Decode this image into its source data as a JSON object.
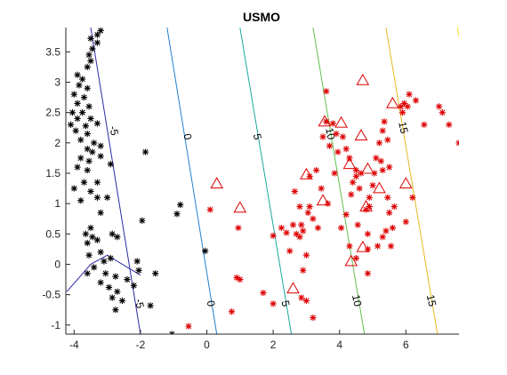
{
  "chart_data": {
    "type": "scatter",
    "title": "USMO",
    "xlabel": "",
    "ylabel": "",
    "xlim": [
      -4.25,
      7.6
    ],
    "ylim": [
      -1.15,
      3.9
    ],
    "xticks": [
      -4,
      -2,
      0,
      2,
      4,
      6
    ],
    "yticks": [
      -1,
      -0.5,
      0,
      0.5,
      1,
      1.5,
      2,
      2.5,
      3,
      3.5
    ],
    "grid": false,
    "contour_lines": [
      {
        "level": -5,
        "label": "-5",
        "color": "#2a2aa6",
        "points": [
          [
            -4.22,
            -0.45
          ],
          [
            -3.5,
            0.0
          ],
          [
            -3.0,
            0.15
          ],
          [
            -2.0,
            -0.18
          ]
        ]
      },
      {
        "level": -5,
        "label": "-5",
        "color": "#2a2aa6",
        "points": [
          [
            -3.5,
            3.9
          ],
          [
            -2.0,
            -1.15
          ]
        ]
      },
      {
        "level": 0,
        "label": "0",
        "color": "#1f7fd0",
        "points": [
          [
            -1.2,
            3.9
          ],
          [
            0.3,
            -1.15
          ]
        ]
      },
      {
        "level": 5,
        "label": "5",
        "color": "#19a8a0",
        "points": [
          [
            1.0,
            3.9
          ],
          [
            2.55,
            -1.15
          ]
        ]
      },
      {
        "level": 10,
        "label": "10",
        "color": "#62c050",
        "points": [
          [
            3.2,
            3.9
          ],
          [
            4.75,
            -1.15
          ]
        ]
      },
      {
        "level": 15,
        "label": "15",
        "color": "#e8b820",
        "points": [
          [
            5.4,
            3.9
          ],
          [
            6.95,
            -1.15
          ]
        ]
      },
      {
        "level": 20,
        "label": "",
        "color": "#f2e01a",
        "points": [
          [
            7.55,
            3.9
          ],
          [
            7.6,
            3.75
          ]
        ]
      }
    ],
    "contour_labels": [
      {
        "text": "-5",
        "x": -2.82,
        "y": 2.2
      },
      {
        "text": "-5",
        "x": -2.05,
        "y": -0.65
      },
      {
        "text": "0",
        "x": -0.6,
        "y": 2.1
      },
      {
        "text": "0",
        "x": 0.1,
        "y": -0.65
      },
      {
        "text": "5",
        "x": 1.5,
        "y": 2.1
      },
      {
        "text": "5",
        "x": 2.35,
        "y": -0.65
      },
      {
        "text": "10",
        "x": 3.7,
        "y": 2.15
      },
      {
        "text": "10",
        "x": 4.5,
        "y": -0.6
      },
      {
        "text": "15",
        "x": 5.9,
        "y": 2.25
      },
      {
        "text": "15",
        "x": 6.75,
        "y": -0.6
      }
    ],
    "series": [
      {
        "marker": "star",
        "color": "#000000",
        "points": [
          [
            -3.2,
            3.85
          ],
          [
            -3.3,
            3.78
          ],
          [
            -3.5,
            3.72
          ],
          [
            -3.3,
            3.65
          ],
          [
            -3.45,
            3.55
          ],
          [
            -3.55,
            3.45
          ],
          [
            -3.5,
            3.35
          ],
          [
            -3.6,
            3.25
          ],
          [
            -3.9,
            3.12
          ],
          [
            -3.75,
            3.05
          ],
          [
            -3.85,
            2.95
          ],
          [
            -3.6,
            2.9
          ],
          [
            -4.0,
            2.8
          ],
          [
            -3.7,
            2.75
          ],
          [
            -3.9,
            2.65
          ],
          [
            -3.55,
            2.6
          ],
          [
            -4.05,
            2.5
          ],
          [
            -3.75,
            2.5
          ],
          [
            -3.9,
            2.4
          ],
          [
            -3.5,
            2.4
          ],
          [
            -4.1,
            2.3
          ],
          [
            -3.65,
            2.28
          ],
          [
            -3.3,
            2.32
          ],
          [
            -3.95,
            2.2
          ],
          [
            -3.6,
            2.15
          ],
          [
            -3.8,
            2.05
          ],
          [
            -3.4,
            2.0
          ],
          [
            -3.2,
            1.95
          ],
          [
            -3.6,
            1.9
          ],
          [
            -3.45,
            1.85
          ],
          [
            -3.8,
            1.75
          ],
          [
            -3.55,
            1.7
          ],
          [
            -3.2,
            1.78
          ],
          [
            -3.9,
            1.6
          ],
          [
            -3.6,
            1.55
          ],
          [
            -2.9,
            1.65
          ],
          [
            -3.7,
            1.35
          ],
          [
            -4.0,
            1.25
          ],
          [
            -3.3,
            1.35
          ],
          [
            -3.5,
            1.2
          ],
          [
            -3.3,
            1.1
          ],
          [
            -3.0,
            1.1
          ],
          [
            -3.8,
            1.05
          ],
          [
            -1.85,
            1.85
          ],
          [
            -3.2,
            0.85
          ],
          [
            -3.5,
            0.6
          ],
          [
            -3.45,
            0.45
          ],
          [
            -3.65,
            0.5
          ],
          [
            -2.85,
            0.5
          ],
          [
            -3.3,
            0.4
          ],
          [
            -2.7,
            0.45
          ],
          [
            -3.6,
            0.35
          ],
          [
            -3.2,
            0.2
          ],
          [
            -3.55,
            0.15
          ],
          [
            -3.1,
            0.05
          ],
          [
            -2.9,
            0.1
          ],
          [
            -3.4,
            -0.05
          ],
          [
            -3.05,
            -0.15
          ],
          [
            -2.75,
            -0.2
          ],
          [
            -3.6,
            -0.15
          ],
          [
            -3.2,
            -0.3
          ],
          [
            -2.95,
            -0.38
          ],
          [
            -2.7,
            -0.45
          ],
          [
            -2.4,
            -0.25
          ],
          [
            -2.2,
            -0.35
          ],
          [
            -2.85,
            -0.55
          ],
          [
            -2.55,
            -0.6
          ],
          [
            -2.75,
            -0.75
          ],
          [
            -1.95,
            0.72
          ],
          [
            -2.1,
            0.05
          ],
          [
            -2.05,
            -0.1
          ],
          [
            -1.55,
            -0.15
          ],
          [
            -1.7,
            -0.68
          ],
          [
            -0.8,
            0.98
          ],
          [
            -0.9,
            0.83
          ],
          [
            -1.05,
            -1.15
          ],
          [
            -0.05,
            0.22
          ]
        ]
      },
      {
        "marker": "star",
        "color": "#dd0000",
        "points": [
          [
            0.1,
            0.9
          ],
          [
            -0.55,
            -1.02
          ],
          [
            0.75,
            -0.78
          ],
          [
            0.9,
            -0.22
          ],
          [
            1.0,
            -0.25
          ],
          [
            0.95,
            0.6
          ],
          [
            1.7,
            -0.47
          ],
          [
            2.0,
            -0.65
          ],
          [
            2.0,
            0.47
          ],
          [
            2.25,
            0.6
          ],
          [
            2.4,
            0.52
          ],
          [
            2.5,
            0.22
          ],
          [
            2.6,
            0.65
          ],
          [
            2.7,
            0.5
          ],
          [
            2.8,
            0.45
          ],
          [
            2.85,
            0.65
          ],
          [
            2.65,
            1.2
          ],
          [
            2.8,
            0.95
          ],
          [
            2.9,
            0.55
          ],
          [
            3.05,
            0.85
          ],
          [
            3.2,
            0.75
          ],
          [
            3.1,
            0.95
          ],
          [
            3.0,
            0.15
          ],
          [
            2.9,
            -0.1
          ],
          [
            2.85,
            -0.55
          ],
          [
            3.0,
            -0.6
          ],
          [
            3.2,
            -0.88
          ],
          [
            3.1,
            1.45
          ],
          [
            3.3,
            1.55
          ],
          [
            3.45,
            1.25
          ],
          [
            3.65,
            1.0
          ],
          [
            3.85,
            1.5
          ],
          [
            3.7,
            1.95
          ],
          [
            3.9,
            2.15
          ],
          [
            3.6,
            2.35
          ],
          [
            3.8,
            2.32
          ],
          [
            3.6,
            2.85
          ],
          [
            3.5,
            2.1
          ],
          [
            3.95,
            1.85
          ],
          [
            4.1,
            2.1
          ],
          [
            4.2,
            1.9
          ],
          [
            4.3,
            1.75
          ],
          [
            4.5,
            1.45
          ],
          [
            4.5,
            1.55
          ],
          [
            4.4,
            1.35
          ],
          [
            4.65,
            1.5
          ],
          [
            4.6,
            1.25
          ],
          [
            4.35,
            1.15
          ],
          [
            4.2,
            0.82
          ],
          [
            4.05,
            0.6
          ],
          [
            4.55,
            0.65
          ],
          [
            4.3,
            0.3
          ],
          [
            4.5,
            0.1
          ],
          [
            4.85,
            0.5
          ],
          [
            4.85,
            0.25
          ],
          [
            4.85,
            -0.15
          ],
          [
            4.9,
            0.95
          ],
          [
            4.9,
            1.1
          ],
          [
            5.0,
            1.3
          ],
          [
            5.05,
            1.5
          ],
          [
            5.1,
            1.75
          ],
          [
            5.2,
            2.0
          ],
          [
            5.25,
            1.7
          ],
          [
            5.3,
            1.55
          ],
          [
            5.3,
            2.2
          ],
          [
            5.35,
            2.35
          ],
          [
            5.45,
            2.05
          ],
          [
            5.5,
            1.6
          ],
          [
            5.45,
            1.1
          ],
          [
            5.5,
            0.85
          ],
          [
            5.4,
            0.55
          ],
          [
            5.3,
            0.45
          ],
          [
            5.55,
            0.3
          ],
          [
            5.6,
            0.6
          ],
          [
            5.65,
            0.95
          ],
          [
            5.85,
            2.6
          ],
          [
            5.9,
            2.5
          ],
          [
            5.95,
            2.65
          ],
          [
            6.05,
            2.6
          ],
          [
            6.2,
            1.1
          ],
          [
            6.3,
            2.7
          ],
          [
            6.0,
            0.7
          ],
          [
            6.55,
            2.3
          ],
          [
            7.0,
            2.6
          ],
          [
            7.1,
            2.5
          ],
          [
            7.3,
            2.3
          ],
          [
            7.6,
            2.0
          ],
          [
            3.35,
            0.6
          ],
          [
            4.8,
            0.9
          ],
          [
            5.15,
            0.3
          ],
          [
            6.1,
            2.8
          ]
        ]
      },
      {
        "marker": "triangle",
        "color": "#dd0000",
        "points": [
          [
            0.3,
            1.33
          ],
          [
            1.0,
            0.93
          ],
          [
            2.6,
            -0.4
          ],
          [
            3.0,
            1.48
          ],
          [
            3.5,
            1.05
          ],
          [
            3.55,
            2.35
          ],
          [
            4.05,
            2.33
          ],
          [
            4.3,
            1.65
          ],
          [
            4.65,
            2.12
          ],
          [
            4.7,
            3.03
          ],
          [
            4.8,
            0.95
          ],
          [
            4.85,
            1.57
          ],
          [
            4.35,
            0.05
          ],
          [
            4.7,
            0.28
          ],
          [
            5.2,
            1.25
          ],
          [
            5.6,
            2.65
          ],
          [
            6.0,
            1.33
          ]
        ]
      }
    ]
  }
}
